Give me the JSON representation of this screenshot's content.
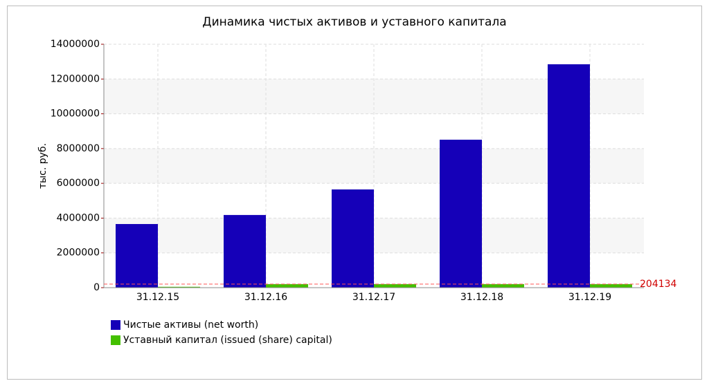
{
  "chart_data": {
    "type": "bar",
    "title": "Динамика чистых активов и уставного капитала",
    "y_label": "тыс. руб.",
    "categories": [
      "31.12.15",
      "31.12.16",
      "31.12.17",
      "31.12.18",
      "31.12.19"
    ],
    "series": [
      {
        "name": "Чистые активы (net worth)",
        "color": "#1500b8",
        "values": [
          3660000,
          4180000,
          5650000,
          8510000,
          12850000
        ]
      },
      {
        "name": "Уставный капитал (issued (share) capital)",
        "color": "#44c000",
        "values": [
          50000,
          204134,
          204134,
          204134,
          204134
        ]
      }
    ],
    "reference_line": {
      "value": 204134,
      "color": "#ff5555"
    },
    "ylim": [
      0,
      14000000
    ],
    "yticks": [
      0,
      2000000,
      4000000,
      6000000,
      8000000,
      10000000,
      12000000,
      14000000
    ],
    "grid": true
  }
}
